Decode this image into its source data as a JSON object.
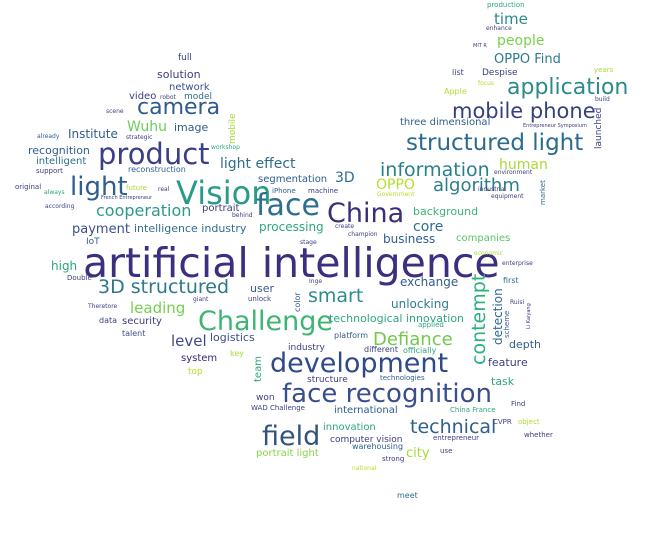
{
  "words": [
    {
      "text": "artificial intelligence",
      "color": "#3b2f7f"
    },
    {
      "text": "face recognition",
      "color": "#3a4d8f"
    },
    {
      "text": "development",
      "color": "#2f4a88"
    },
    {
      "text": "product",
      "color": "#3a3f88"
    },
    {
      "text": "Vision",
      "color": "#2a9b8a"
    },
    {
      "text": "face",
      "color": "#2d6f8e"
    },
    {
      "text": "China",
      "color": "#3a2d7c"
    },
    {
      "text": "Challenge",
      "color": "#3fb573"
    },
    {
      "text": "structured light",
      "color": "#2a6b8e"
    },
    {
      "text": "application",
      "color": "#2a8a8c"
    },
    {
      "text": "mobile phone",
      "color": "#35407f"
    },
    {
      "text": "field",
      "color": "#31537f"
    },
    {
      "text": "3D structured",
      "color": "#2c788c"
    },
    {
      "text": "light",
      "color": "#2f5f8c"
    },
    {
      "text": "camera",
      "color": "#2e5a8c"
    },
    {
      "text": "information",
      "color": "#2a7f8e"
    },
    {
      "text": "algorithm",
      "color": "#2e7d8e"
    },
    {
      "text": "Defiance",
      "color": "#71c94b"
    },
    {
      "text": "contempt",
      "color": "#2bb07f"
    },
    {
      "text": "smart",
      "color": "#2b8c8c"
    },
    {
      "text": "technical",
      "color": "#2f5f8c"
    },
    {
      "text": "cooperation",
      "color": "#2b9a8a"
    },
    {
      "text": "time",
      "color": "#2c8a8c"
    },
    {
      "text": "people",
      "color": "#7dcf4d"
    },
    {
      "text": "OPPO Find",
      "color": "#2d7a8e"
    },
    {
      "text": "light effect",
      "color": "#2e6e8e"
    },
    {
      "text": "human",
      "color": "#a8db34"
    },
    {
      "text": "OPPO",
      "color": "#b5de2b"
    },
    {
      "text": "Wuhu",
      "color": "#6ccd5a"
    },
    {
      "text": "3D",
      "color": "#2e6e8e"
    },
    {
      "text": "payment",
      "color": "#3b4f8a"
    },
    {
      "text": "leading",
      "color": "#75cf50"
    },
    {
      "text": "level",
      "color": "#3f4788"
    },
    {
      "text": "core",
      "color": "#2f6e8e"
    },
    {
      "text": "exchange",
      "color": "#2f5e8c"
    },
    {
      "text": "unlocking",
      "color": "#2e7d8e"
    },
    {
      "text": "technological innovation",
      "color": "#2ea77e"
    },
    {
      "text": "detection",
      "color": "#2f6a8e"
    },
    {
      "text": "Institute",
      "color": "#2f5e8c"
    },
    {
      "text": "recognition",
      "color": "#2f5e8c"
    },
    {
      "text": "intelligent",
      "color": "#2e6f8e"
    },
    {
      "text": "solution",
      "color": "#3b3f7f"
    },
    {
      "text": "network",
      "color": "#3b4f8a"
    },
    {
      "text": "video",
      "color": "#3b3f7f"
    },
    {
      "text": "model",
      "color": "#2e6e8e"
    },
    {
      "text": "image",
      "color": "#2f5e8c"
    },
    {
      "text": "three dimensional",
      "color": "#2f5e8c"
    },
    {
      "text": "segmentation",
      "color": "#2f5e8c"
    },
    {
      "text": "background",
      "color": "#3bb376"
    },
    {
      "text": "business",
      "color": "#2f5e8c"
    },
    {
      "text": "companies",
      "color": "#56c667"
    },
    {
      "text": "high",
      "color": "#2ea57f"
    },
    {
      "text": "processing",
      "color": "#2ea57f"
    },
    {
      "text": "intelligence industry",
      "color": "#2f6e8e"
    },
    {
      "text": "portrait",
      "color": "#3b3f7f"
    },
    {
      "text": "logistics",
      "color": "#3b4f8a"
    },
    {
      "text": "user",
      "color": "#2f5e8c"
    },
    {
      "text": "security",
      "color": "#3b3f7f"
    },
    {
      "text": "system",
      "color": "#3b1f6f"
    },
    {
      "text": "industry",
      "color": "#3b3f7f"
    },
    {
      "text": "structure",
      "color": "#3b3f7f"
    },
    {
      "text": "international",
      "color": "#2f5e8c"
    },
    {
      "text": "innovation",
      "color": "#2ea57f"
    },
    {
      "text": "computer vision",
      "color": "#3b3f7f"
    },
    {
      "text": "warehousing",
      "color": "#2f5e8c"
    },
    {
      "text": "portrait light",
      "color": "#86d549"
    },
    {
      "text": "city",
      "color": "#a8db34"
    },
    {
      "text": "task",
      "color": "#2ea57f"
    },
    {
      "text": "feature",
      "color": "#3b3f7f"
    },
    {
      "text": "depth",
      "color": "#2f5e8c"
    },
    {
      "text": "different",
      "color": "#3b3f7f"
    },
    {
      "text": "team",
      "color": "#2ea57f"
    },
    {
      "text": "won",
      "color": "#3b3f7f"
    },
    {
      "text": "full",
      "color": "#3b3f7f"
    },
    {
      "text": "Apple",
      "color": "#b5de2b"
    },
    {
      "text": "Despise",
      "color": "#3b3f7f"
    },
    {
      "text": "list",
      "color": "#3b3f7f"
    },
    {
      "text": "launched",
      "color": "#3b3f7f"
    },
    {
      "text": "mobile",
      "color": "#a8db34"
    },
    {
      "text": "production",
      "color": "#2ea57f"
    },
    {
      "text": "enhance",
      "color": "#3b3f7f"
    },
    {
      "text": "first",
      "color": "#2f6e8e"
    },
    {
      "text": "talent",
      "color": "#3b4f8a"
    },
    {
      "text": "data",
      "color": "#3b3f7f"
    },
    {
      "text": "IoT",
      "color": "#2f5e8c"
    },
    {
      "text": "top",
      "color": "#b5de2b"
    },
    {
      "text": "key",
      "color": "#a8db34"
    },
    {
      "text": "color",
      "color": "#2f5e8c"
    },
    {
      "text": "platform",
      "color": "#2f5e8c"
    },
    {
      "text": "officially",
      "color": "#2ea57f"
    },
    {
      "text": "applied",
      "color": "#2ea57f"
    },
    {
      "text": "technologies",
      "color": "#2f5e8c"
    },
    {
      "text": "WAD Challenge",
      "color": "#3b3f7f"
    },
    {
      "text": "China France",
      "color": "#2ea57f"
    },
    {
      "text": "CVPR",
      "color": "#3b3f7f"
    },
    {
      "text": "object",
      "color": "#a8db34"
    },
    {
      "text": "Find",
      "color": "#3b3f7f"
    },
    {
      "text": "whether",
      "color": "#3b3f7f"
    },
    {
      "text": "entrepreneur",
      "color": "#3b3f7f"
    },
    {
      "text": "use",
      "color": "#3b3f7f"
    },
    {
      "text": "strong",
      "color": "#3b3f7f"
    },
    {
      "text": "national",
      "color": "#b5de2b"
    },
    {
      "text": "meet",
      "color": "#2f6e8e"
    },
    {
      "text": "support",
      "color": "#3b3f7f"
    },
    {
      "text": "original",
      "color": "#3b3f7f"
    },
    {
      "text": "always",
      "color": "#2ea57f"
    },
    {
      "text": "according",
      "color": "#3b3f7f"
    },
    {
      "text": "Double",
      "color": "#3b3f7f"
    },
    {
      "text": "Theretore",
      "color": "#3b3f7f"
    },
    {
      "text": "giant",
      "color": "#3b3f7f"
    },
    {
      "text": "unlock",
      "color": "#3b3f7f"
    },
    {
      "text": "stage",
      "color": "#3b3f7f"
    },
    {
      "text": "create",
      "color": "#3b3f7f"
    },
    {
      "text": "champion",
      "color": "#3b3f7f"
    },
    {
      "text": "iPhone",
      "color": "#2f5e8c"
    },
    {
      "text": "machine",
      "color": "#3b3f7f"
    },
    {
      "text": "real",
      "color": "#3b3f7f"
    },
    {
      "text": "future",
      "color": "#a8db34"
    },
    {
      "text": "reconstruction",
      "color": "#2f5e8c"
    },
    {
      "text": "already",
      "color": "#2f5e8c"
    },
    {
      "text": "scene",
      "color": "#3b3f7f"
    },
    {
      "text": "strategic",
      "color": "#3b3f7f"
    },
    {
      "text": "Ruisi",
      "color": "#3b3f7f"
    },
    {
      "text": "scheme",
      "color": "#2f5e8c"
    },
    {
      "text": "enterprise",
      "color": "#3b3f7f"
    },
    {
      "text": "economic",
      "color": "#a8db34"
    },
    {
      "text": "industrial",
      "color": "#3b3f7f"
    },
    {
      "text": "market",
      "color": "#2f6e8e"
    },
    {
      "text": "equipment",
      "color": "#3b3f7f"
    },
    {
      "text": "environment",
      "color": "#3b3f7f"
    },
    {
      "text": "years",
      "color": "#a8db34"
    },
    {
      "text": "build",
      "color": "#3b3f7f"
    },
    {
      "text": "Entrepreneur Symposium",
      "color": "#3b3f7f"
    },
    {
      "text": "focus",
      "color": "#b5de2b"
    },
    {
      "text": "behind",
      "color": "#3b3f7f"
    },
    {
      "text": "workshop",
      "color": "#2ea57f"
    },
    {
      "text": "Inge",
      "color": "#3b3f7f"
    },
    {
      "text": "Government",
      "color": "#b5de2b"
    },
    {
      "text": "Li Kaiyang",
      "color": "#3b3f7f"
    },
    {
      "text": "French Entrepreneur",
      "color": "#3b3f7f"
    },
    {
      "text": "MIT R",
      "color": "#3b3f7f"
    },
    {
      "text": "robot",
      "color": "#3b3f7f"
    }
  ]
}
